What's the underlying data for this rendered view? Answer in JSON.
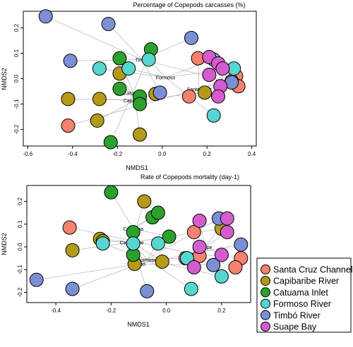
{
  "legend": [
    {
      "name": "Santa Cruz Channel",
      "color": "#f4826f"
    },
    {
      "name": "Capibaribe River",
      "color": "#b39a19"
    },
    {
      "name": "Catuama Inlet",
      "color": "#2ca02c"
    },
    {
      "name": "Formoso River",
      "color": "#56d6d0"
    },
    {
      "name": "Timbó River",
      "color": "#7b8fd4"
    },
    {
      "name": "Suape Bay",
      "color": "#d55ccf"
    }
  ],
  "chart_data": [
    {
      "type": "scatter",
      "title": "Percentage of Copepods carcasses (%)",
      "xlabel": "NMDS1",
      "ylabel": "NMDS2",
      "xlim": [
        -0.62,
        0.42
      ],
      "ylim": [
        -0.265,
        0.265
      ],
      "xticks": [
        "-0.6",
        "-0.4",
        "-0.2",
        "0.0",
        "0.2",
        "0.4"
      ],
      "xtick_values": [
        -0.6,
        -0.4,
        -0.2,
        0.0,
        0.2,
        0.4
      ],
      "yticks": [
        "-0.2",
        "-0.1",
        "0.0",
        "0.1",
        "0.2"
      ],
      "ytick_values": [
        -0.2,
        -0.1,
        0.0,
        0.1,
        0.2
      ],
      "centroids": [
        {
          "site": "Timbó River",
          "label": "Timbó",
          "x": -0.09,
          "y": 0.075
        },
        {
          "site": "Formoso River",
          "label": "Formoso",
          "x": 0.015,
          "y": 0.005
        },
        {
          "site": "Suape Bay",
          "label": "Suape",
          "x": 0.27,
          "y": -0.01
        },
        {
          "site": "Catuama Inlet",
          "label": "Catuama",
          "x": -0.13,
          "y": -0.055
        },
        {
          "site": "Santa Cruz Channel",
          "label": "Santa Cruz",
          "x": 0.165,
          "y": -0.04
        },
        {
          "site": "Capibaribe River",
          "label": "Capibaribe",
          "x": -0.12,
          "y": -0.085
        }
      ],
      "points": [
        {
          "site": "Santa Cruz Channel",
          "x": -0.42,
          "y": -0.185
        },
        {
          "site": "Santa Cruz Channel",
          "x": 0.16,
          "y": 0.08
        },
        {
          "site": "Santa Cruz Channel",
          "x": 0.12,
          "y": -0.07
        },
        {
          "site": "Santa Cruz Channel",
          "x": 0.33,
          "y": 0.01
        },
        {
          "site": "Santa Cruz Channel",
          "x": 0.34,
          "y": -0.03
        },
        {
          "site": "Santa Cruz Channel",
          "x": 0.31,
          "y": -0.01
        },
        {
          "site": "Capibaribe River",
          "x": -0.42,
          "y": -0.08
        },
        {
          "site": "Capibaribe River",
          "x": -0.28,
          "y": -0.08
        },
        {
          "site": "Capibaribe River",
          "x": -0.29,
          "y": -0.165
        },
        {
          "site": "Capibaribe River",
          "x": -0.19,
          "y": 0.02
        },
        {
          "site": "Capibaribe River",
          "x": -0.1,
          "y": -0.22
        },
        {
          "site": "Capibaribe River",
          "x": -0.03,
          "y": -0.06
        },
        {
          "site": "Capibaribe River",
          "x": 0.19,
          "y": -0.055
        },
        {
          "site": "Catuama Inlet",
          "x": -0.19,
          "y": 0.08
        },
        {
          "site": "Catuama Inlet",
          "x": -0.19,
          "y": -0.04
        },
        {
          "site": "Catuama Inlet",
          "x": -0.23,
          "y": -0.25
        },
        {
          "site": "Catuama Inlet",
          "x": -0.1,
          "y": -0.07
        },
        {
          "site": "Catuama Inlet",
          "x": -0.1,
          "y": -0.1
        },
        {
          "site": "Catuama Inlet",
          "x": -0.05,
          "y": 0.115
        },
        {
          "site": "Formoso River",
          "x": -0.28,
          "y": 0.04
        },
        {
          "site": "Formoso River",
          "x": -0.15,
          "y": 0.04
        },
        {
          "site": "Formoso River",
          "x": -0.06,
          "y": 0.075
        },
        {
          "site": "Formoso River",
          "x": 0.23,
          "y": 0.075
        },
        {
          "site": "Formoso River",
          "x": 0.32,
          "y": 0.04
        },
        {
          "site": "Formoso River",
          "x": 0.23,
          "y": -0.145
        },
        {
          "site": "Timbó River",
          "x": -0.52,
          "y": 0.245
        },
        {
          "site": "Timbó River",
          "x": -0.41,
          "y": 0.07
        },
        {
          "site": "Timbó River",
          "x": -0.24,
          "y": 0.215
        },
        {
          "site": "Timbó River",
          "x": 0.13,
          "y": 0.16
        },
        {
          "site": "Timbó River",
          "x": -0.01,
          "y": -0.055
        },
        {
          "site": "Timbó River",
          "x": 0.31,
          "y": -0.015
        },
        {
          "site": "Suape Bay",
          "x": 0.21,
          "y": 0.085
        },
        {
          "site": "Suape Bay",
          "x": 0.25,
          "y": 0.06
        },
        {
          "site": "Suape Bay",
          "x": 0.27,
          "y": 0.04
        },
        {
          "site": "Suape Bay",
          "x": 0.21,
          "y": 0.015
        },
        {
          "site": "Suape Bay",
          "x": 0.26,
          "y": -0.03
        },
        {
          "site": "Suape Bay",
          "x": 0.25,
          "y": -0.07
        }
      ]
    },
    {
      "type": "scatter",
      "title": "Rate of Copepods mortality (day-1)",
      "xlabel": "NMDS1",
      "ylabel": "NMDS2",
      "xlim": [
        -0.505,
        0.305
      ],
      "ylim": [
        -0.245,
        0.27
      ],
      "xticks": [
        "-0.4",
        "-0.2",
        "0.0",
        "0.2"
      ],
      "xtick_values": [
        -0.4,
        -0.2,
        0.0,
        0.2
      ],
      "yticks": [
        "-0.2",
        "-0.1",
        "0.0",
        "0.1",
        "0.2"
      ],
      "ytick_values": [
        -0.2,
        -0.1,
        0.0,
        0.1,
        0.2
      ],
      "centroids": [
        {
          "site": "Catuama Inlet",
          "label": "Catuama",
          "x": -0.12,
          "y": 0.08
        },
        {
          "site": "Capibaribe River",
          "label": "Capibaribe",
          "x": -0.125,
          "y": 0.02
        },
        {
          "site": "Suape Bay",
          "label": "Suape",
          "x": 0.14,
          "y": 0.0
        },
        {
          "site": "Formoso River",
          "label": "Formoso",
          "x": -0.07,
          "y": -0.055
        },
        {
          "site": "Santa Cruz Channel",
          "label": "Santa Cruz",
          "x": 0.095,
          "y": -0.03
        },
        {
          "site": "Timbó River",
          "label": "Timbó",
          "x": -0.1,
          "y": -0.075
        }
      ],
      "points": [
        {
          "site": "Santa Cruz Channel",
          "x": -0.35,
          "y": 0.085
        },
        {
          "site": "Santa Cruz Channel",
          "x": 0.1,
          "y": 0.065
        },
        {
          "site": "Santa Cruz Channel",
          "x": 0.27,
          "y": -0.05
        },
        {
          "site": "Santa Cruz Channel",
          "x": 0.25,
          "y": -0.09
        },
        {
          "site": "Santa Cruz Channel",
          "x": 0.12,
          "y": -0.04
        },
        {
          "site": "Santa Cruz Channel",
          "x": 0.07,
          "y": -0.05
        },
        {
          "site": "Capibaribe River",
          "x": -0.34,
          "y": -0.015
        },
        {
          "site": "Capibaribe River",
          "x": -0.24,
          "y": 0.035
        },
        {
          "site": "Capibaribe River",
          "x": -0.08,
          "y": 0.2
        },
        {
          "site": "Capibaribe River",
          "x": -0.23,
          "y": 0.025
        },
        {
          "site": "Capibaribe River",
          "x": -0.115,
          "y": -0.075
        },
        {
          "site": "Capibaribe River",
          "x": -0.015,
          "y": -0.065
        },
        {
          "site": "Capibaribe River",
          "x": 0.2,
          "y": 0.08
        },
        {
          "site": "Catuama Inlet",
          "x": -0.2,
          "y": 0.24
        },
        {
          "site": "Catuama Inlet",
          "x": -0.05,
          "y": 0.13
        },
        {
          "site": "Catuama Inlet",
          "x": -0.03,
          "y": 0.15
        },
        {
          "site": "Catuama Inlet",
          "x": -0.12,
          "y": 0.065
        },
        {
          "site": "Catuama Inlet",
          "x": -0.12,
          "y": -0.035
        },
        {
          "site": "Catuama Inlet",
          "x": 0.01,
          "y": 0.045
        },
        {
          "site": "Formoso River",
          "x": -0.23,
          "y": 0.015
        },
        {
          "site": "Formoso River",
          "x": -0.12,
          "y": 0.015
        },
        {
          "site": "Formoso River",
          "x": -0.03,
          "y": 0.015
        },
        {
          "site": "Formoso River",
          "x": 0.075,
          "y": -0.05
        },
        {
          "site": "Formoso River",
          "x": 0.09,
          "y": -0.185
        },
        {
          "site": "Formoso River",
          "x": 0.2,
          "y": -0.13
        },
        {
          "site": "Timbó River",
          "x": -0.47,
          "y": -0.145
        },
        {
          "site": "Timbó River",
          "x": -0.34,
          "y": -0.185
        },
        {
          "site": "Timbó River",
          "x": -0.07,
          "y": -0.195
        },
        {
          "site": "Timbó River",
          "x": 0.19,
          "y": 0.125
        },
        {
          "site": "Timbó River",
          "x": 0.27,
          "y": 0.01
        },
        {
          "site": "Timbó River",
          "x": 0.17,
          "y": -0.08
        },
        {
          "site": "Suape Bay",
          "x": 0.12,
          "y": 0.115
        },
        {
          "site": "Suape Bay",
          "x": 0.22,
          "y": 0.125
        },
        {
          "site": "Suape Bay",
          "x": 0.22,
          "y": 0.065
        },
        {
          "site": "Suape Bay",
          "x": 0.12,
          "y": 0.0
        },
        {
          "site": "Suape Bay",
          "x": 0.2,
          "y": -0.035
        },
        {
          "site": "Suape Bay",
          "x": 0.1,
          "y": -0.09
        }
      ]
    }
  ]
}
